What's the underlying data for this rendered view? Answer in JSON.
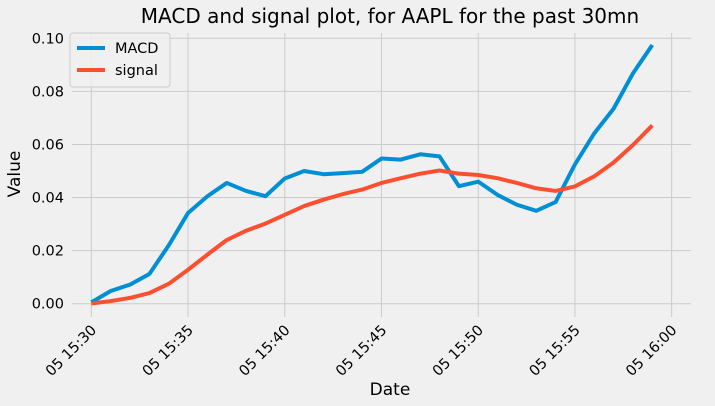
{
  "chart_data": {
    "type": "line",
    "title": "MACD and signal plot, for AAPL for the past 30mn",
    "xlabel": "Date",
    "ylabel": "Value",
    "xlim": [
      "05 15:29",
      "05 16:01"
    ],
    "ylim": [
      -0.005,
      0.102
    ],
    "x_ticks": [
      "05 15:30",
      "05 15:35",
      "05 15:40",
      "05 15:45",
      "05 15:50",
      "05 15:55",
      "05 16:00"
    ],
    "y_ticks": [
      "0.00",
      "0.02",
      "0.04",
      "0.06",
      "0.08",
      "0.10"
    ],
    "y_tick_values": [
      0,
      0.02,
      0.04,
      0.06,
      0.08,
      0.1
    ],
    "grid": true,
    "legend_position": "top-left",
    "x": [
      "05 15:30",
      "05 15:31",
      "05 15:32",
      "05 15:33",
      "05 15:34",
      "05 15:35",
      "05 15:36",
      "05 15:37",
      "05 15:38",
      "05 15:39",
      "05 15:40",
      "05 15:41",
      "05 15:42",
      "05 15:43",
      "05 15:44",
      "05 15:45",
      "05 15:46",
      "05 15:47",
      "05 15:48",
      "05 15:49",
      "05 15:50",
      "05 15:51",
      "05 15:52",
      "05 15:53",
      "05 15:54",
      "05 15:55",
      "05 15:56",
      "05 15:57",
      "05 15:58",
      "05 15:59"
    ],
    "series": [
      {
        "name": "MACD",
        "color": "#008fd5",
        "values": [
          0.0005,
          0.0048,
          0.0072,
          0.0112,
          0.022,
          0.0342,
          0.0405,
          0.0455,
          0.0425,
          0.0405,
          0.0472,
          0.05,
          0.0488,
          0.0492,
          0.0497,
          0.0547,
          0.0543,
          0.0563,
          0.0555,
          0.0443,
          0.046,
          0.041,
          0.0373,
          0.035,
          0.0383,
          0.0525,
          0.0642,
          0.0735,
          0.0868,
          0.0975
        ]
      },
      {
        "name": "signal",
        "color": "#fc4f30",
        "values": [
          0.0001,
          0.001,
          0.0022,
          0.004,
          0.0075,
          0.0128,
          0.0185,
          0.024,
          0.0275,
          0.0302,
          0.0335,
          0.0368,
          0.0392,
          0.0413,
          0.043,
          0.0455,
          0.0473,
          0.049,
          0.0502,
          0.049,
          0.0485,
          0.0473,
          0.0455,
          0.0435,
          0.0425,
          0.0442,
          0.048,
          0.0532,
          0.0598,
          0.0672
        ]
      }
    ]
  }
}
